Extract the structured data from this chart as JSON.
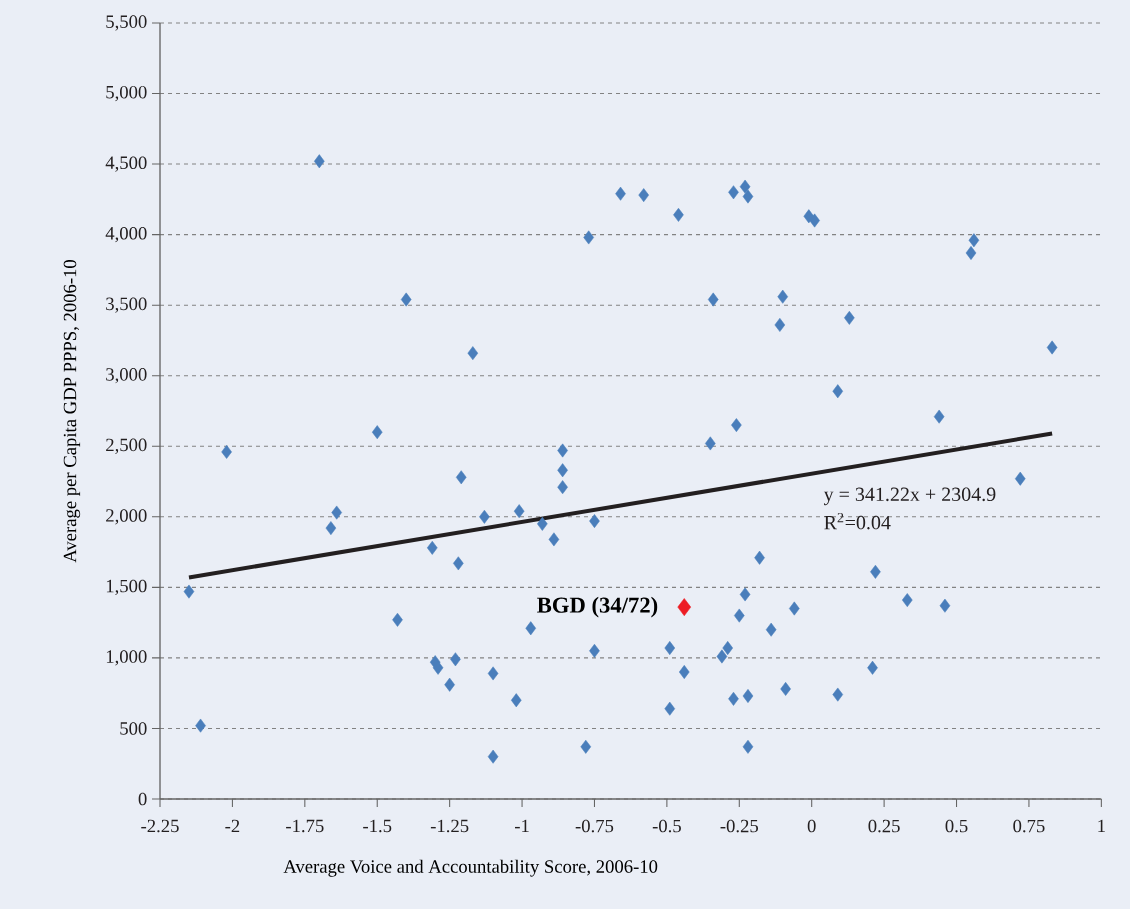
{
  "chart_data": {
    "type": "scatter",
    "xlabel": "Average Voice and Accountability Score, 2006-10",
    "ylabel": "Average per Capita GDP PPPS, 2006-10",
    "xlim": [
      -2.25,
      1
    ],
    "xticks": [
      -2.25,
      -2,
      -1.75,
      -1.5,
      -1.25,
      -1,
      -0.75,
      -0.5,
      -0.25,
      0,
      0.25,
      0.5,
      0.75,
      1
    ],
    "ylim": [
      0,
      5500
    ],
    "yticks": [
      0,
      500,
      {
        "value": 1000,
        "label": "1,000"
      },
      {
        "value": 1500,
        "label": "1,500"
      },
      {
        "value": 2000,
        "label": "2,000"
      },
      {
        "value": 2500,
        "label": "2,500"
      },
      {
        "value": 3000,
        "label": "3,000"
      },
      {
        "value": 3500,
        "label": "3,500"
      },
      {
        "value": 4000,
        "label": "4,000"
      },
      {
        "value": 4500,
        "label": "4,500"
      },
      {
        "value": 5000,
        "label": "5,000"
      },
      {
        "value": 5500,
        "label": "5,500"
      }
    ],
    "grid": "y",
    "marker": "diamond",
    "series": [
      {
        "color": "#4a7ebb",
        "x": [
          -1.7,
          -2.02,
          -2.15,
          -2.11,
          -1.4,
          -1.5,
          -1.64,
          -1.66,
          -1.43,
          -1.17,
          -1.21,
          -1.13,
          -1.31,
          -1.22,
          -1.3,
          -1.29,
          -1.23,
          -1.25,
          -1.1,
          -1.1,
          -1.02,
          -0.97,
          -1.01,
          -0.93,
          -0.89,
          -0.86,
          -0.86,
          -0.86,
          -0.77,
          -0.75,
          -0.75,
          -0.78,
          -0.66,
          -0.58,
          -0.46,
          -0.34,
          -0.35,
          -0.26,
          -0.27,
          -0.23,
          -0.22,
          -0.01,
          0.01,
          -0.1,
          -0.11,
          0.13,
          0.09,
          0.56,
          0.55,
          0.83,
          0.44,
          0.72,
          -0.18,
          0.22,
          0.33,
          0.46,
          -0.23,
          -0.06,
          -0.14,
          -0.25,
          -0.29,
          -0.31,
          -0.49,
          -0.44,
          -0.49,
          -0.27,
          -0.22,
          -0.22,
          -0.09,
          0.09,
          0.21
        ],
        "values": [
          4520,
          2460,
          1470,
          520,
          3540,
          2600,
          2030,
          1920,
          1270,
          3160,
          2280,
          2000,
          1780,
          1670,
          970,
          930,
          990,
          810,
          890,
          300,
          700,
          1210,
          2040,
          1950,
          1840,
          2470,
          2330,
          2210,
          3980,
          1970,
          1050,
          370,
          4290,
          4280,
          4140,
          3540,
          2520,
          2650,
          4300,
          4340,
          4270,
          4130,
          4100,
          3560,
          3360,
          3410,
          2890,
          3960,
          3870,
          3200,
          2710,
          2270,
          1710,
          1610,
          1410,
          1370,
          1450,
          1350,
          1200,
          1300,
          1070,
          1010,
          1070,
          900,
          640,
          710,
          730,
          370,
          780,
          740,
          930
        ]
      },
      {
        "type": "scatter",
        "color": "#ed1c24",
        "x": [
          -0.44
        ],
        "values": [
          1360
        ]
      },
      {
        "type": "line",
        "marker": "none",
        "color": "#231f20",
        "x": [
          -2.15,
          0.83
        ],
        "values": [
          1570,
          2590
        ]
      }
    ],
    "annotations": [
      {
        "text": "BGD (34/72)",
        "x": -0.44,
        "y": 1360
      },
      "y = 341.22x + 2304.9",
      "R$^{2}$=0.04"
    ]
  }
}
